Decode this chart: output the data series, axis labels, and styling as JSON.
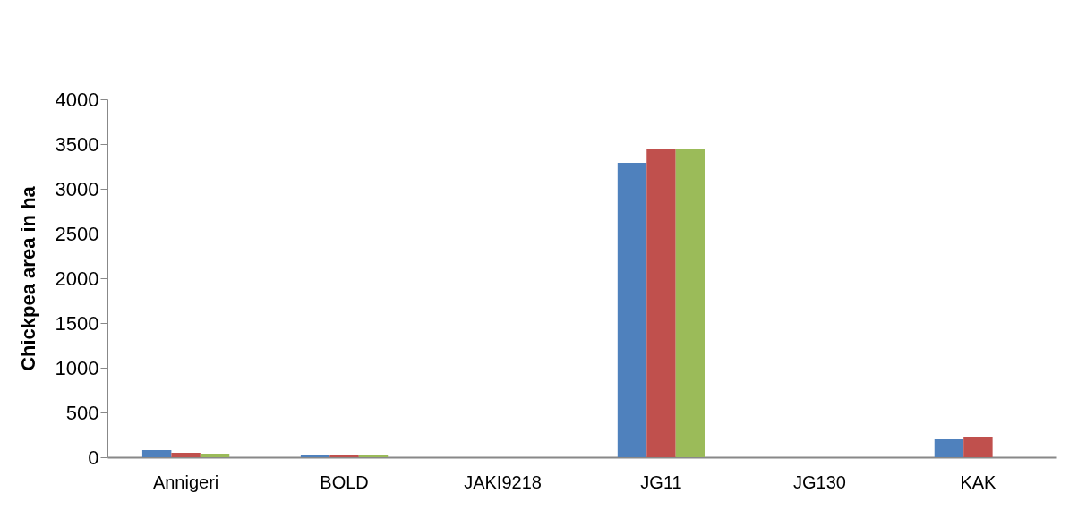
{
  "chart_data": {
    "type": "bar",
    "ylabel": "Chickpea area in ha",
    "categories": [
      "Annigeri",
      "BOLD",
      "JAKI9218",
      "JG11",
      "JG130",
      "KAK"
    ],
    "series": [
      {
        "color": "#4f81bd",
        "values": [
          80,
          20,
          null,
          3290,
          null,
          200
        ]
      },
      {
        "color": "#c0504d",
        "values": [
          50,
          20,
          null,
          3450,
          null,
          230
        ]
      },
      {
        "color": "#9bbb59",
        "values": [
          40,
          20,
          null,
          3440,
          null,
          null
        ]
      }
    ],
    "ylim": [
      0,
      4000
    ],
    "yticks": [
      0,
      500,
      1000,
      1500,
      2000,
      2500,
      3000,
      3500,
      4000
    ],
    "grid": false,
    "legend": false
  }
}
